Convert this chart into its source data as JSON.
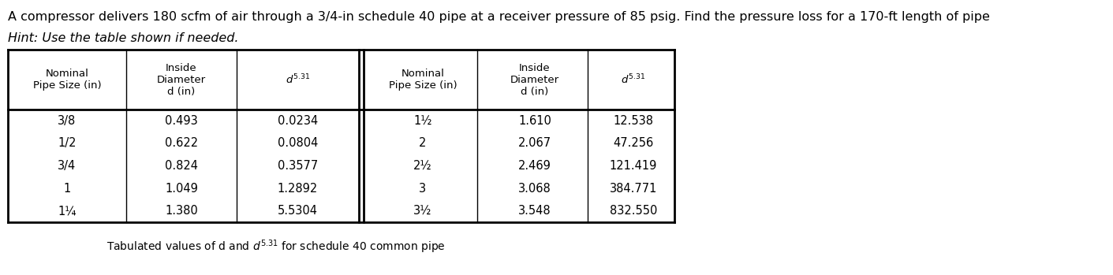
{
  "title": "A compressor delivers 180 scfm of air through a 3/4-in schedule 40 pipe at a receiver pressure of 85 psig. Find the pressure loss for a 170-ft length of pipe",
  "hint": "Hint: Use the table shown if needed.",
  "caption": "Tabulated values of d and $d^{5.31}$ for schedule 40 common pipe",
  "header_col1": "Nominal\nPipe Size (in)",
  "header_col2": "Inside\nDiameter\nd (in)",
  "header_col3": "$d^{5.31}$",
  "left_nominal": [
    "3/8",
    "1/2",
    "3/4",
    "1",
    "1¼"
  ],
  "left_diameter": [
    "0.493",
    "0.622",
    "0.824",
    "1.049",
    "1.380"
  ],
  "left_d531": [
    "0.0234",
    "0.0804",
    "0.3577",
    "1.2892",
    "5.5304"
  ],
  "right_nominal": [
    "1½",
    "2",
    "2½",
    "3",
    "3½"
  ],
  "right_diameter": [
    "1.610",
    "2.067",
    "2.469",
    "3.068",
    "3.548"
  ],
  "right_d531": [
    "12.538",
    "47.256",
    "121.419",
    "384.771",
    "832.550"
  ],
  "bg_color": "#ffffff",
  "title_fontsize": 11.5,
  "hint_fontsize": 11.5,
  "header_fontsize": 9.5,
  "data_fontsize": 10.5,
  "caption_fontsize": 10
}
